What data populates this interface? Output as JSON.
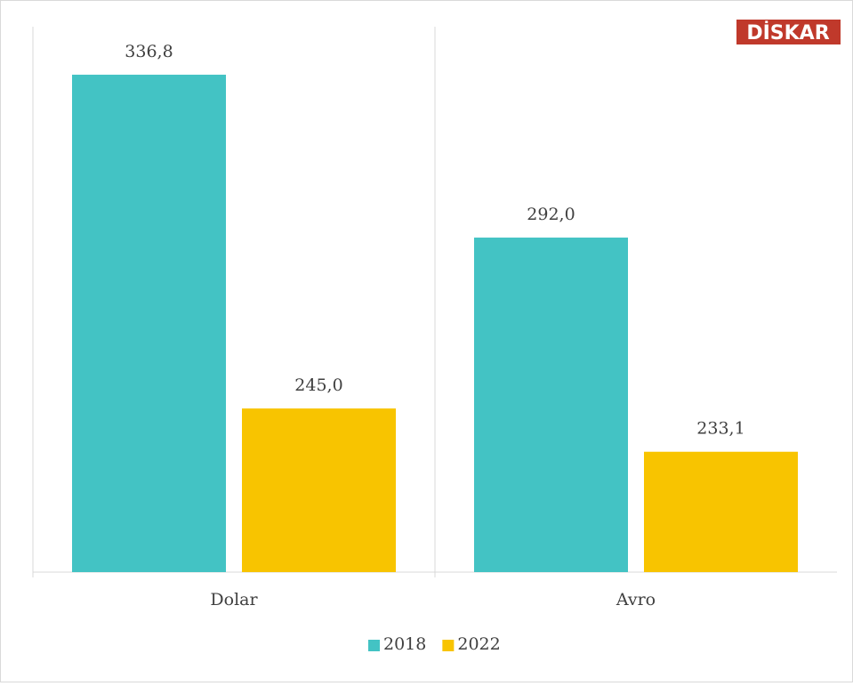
{
  "chart_data": {
    "type": "bar",
    "logo": "DİSKAR",
    "categories": [
      "Dolar",
      "Avro"
    ],
    "series": [
      {
        "name": "2018",
        "color": "#43c3c4",
        "values": [
          336.8,
          292.0
        ],
        "value_labels": [
          "336,8",
          "292,0"
        ]
      },
      {
        "name": "2022",
        "color": "#f8c400",
        "values": [
          245.0,
          233.1
        ],
        "value_labels": [
          "245,0",
          "233,1"
        ]
      }
    ],
    "ylim": [
      200,
      350
    ]
  }
}
